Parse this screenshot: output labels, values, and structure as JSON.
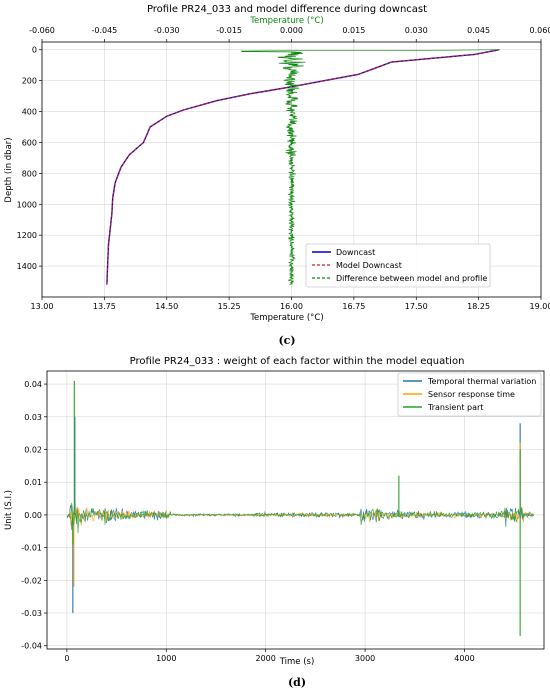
{
  "chart_data": [
    {
      "type": "line",
      "panel_label": "(c)",
      "title": "Profile PR24_033 and model difference during downcast",
      "xlabel_bottom": "Temperature (°C)",
      "xlabel_top": "Temperature (°C)",
      "ylabel": "Depth (in dbar)",
      "x_bottom_range": [
        13.0,
        19.0
      ],
      "x_bottom_ticks": [
        "13.00",
        "13.75",
        "14.50",
        "15.25",
        "16.00",
        "16.75",
        "17.50",
        "18.25",
        "19.00"
      ],
      "x_top_range": [
        -0.06,
        0.06
      ],
      "x_top_ticks": [
        "-0.060",
        "-0.045",
        "-0.030",
        "-0.015",
        "0.000",
        "0.015",
        "0.030",
        "0.045",
        "0.060"
      ],
      "y_range": [
        1600,
        -50
      ],
      "y_inverted": true,
      "y_ticks": [
        "0",
        "200",
        "400",
        "600",
        "800",
        "1000",
        "1200",
        "1400"
      ],
      "grid": true,
      "legend_position": "bottom-right",
      "colors": {
        "downcast": "#0000cc",
        "model": "#cc2222",
        "diff": "#118811",
        "top_axis": "#118811"
      },
      "series": [
        {
          "name": "Downcast",
          "axis": "bottom",
          "x": [
            18.5,
            18.2,
            17.2,
            17.0,
            16.8,
            16.4,
            16.0,
            15.5,
            15.1,
            14.7,
            14.5,
            14.3,
            14.22,
            14.05,
            13.95,
            13.88,
            13.85,
            13.84,
            13.82,
            13.8,
            13.79,
            13.78
          ],
          "y": [
            0,
            30,
            80,
            120,
            160,
            200,
            240,
            285,
            330,
            390,
            430,
            500,
            600,
            680,
            760,
            860,
            960,
            1060,
            1160,
            1260,
            1380,
            1520
          ]
        },
        {
          "name": "Model Downcast",
          "axis": "bottom",
          "x": [
            18.5,
            18.2,
            17.2,
            17.0,
            16.8,
            16.4,
            16.0,
            15.5,
            15.1,
            14.7,
            14.5,
            14.3,
            14.22,
            14.05,
            13.95,
            13.88,
            13.85,
            13.84,
            13.82,
            13.8,
            13.79,
            13.78
          ],
          "y": [
            0,
            30,
            80,
            120,
            160,
            200,
            240,
            285,
            330,
            390,
            430,
            500,
            600,
            680,
            760,
            860,
            960,
            1060,
            1160,
            1260,
            1380,
            1520
          ]
        },
        {
          "name": "Difference between model and profile",
          "axis": "top",
          "x_range_near_surface": [
            -0.012,
            0.05
          ],
          "x_range_deep": [
            -0.002,
            0.002
          ],
          "y_range": [
            0,
            1520
          ]
        }
      ]
    },
    {
      "type": "line",
      "panel_label": "(d)",
      "title": "Profile PR24_033 : weight of each factor within the model equation",
      "xlabel": "Time (s)",
      "ylabel": "Unit (S.I.)",
      "xlim": [
        -200,
        4800
      ],
      "ylim": [
        -0.041,
        0.044
      ],
      "x_ticks": [
        "0",
        "1000",
        "2000",
        "3000",
        "4000"
      ],
      "y_ticks": [
        "0.04",
        "0.03",
        "0.02",
        "0.01",
        "0.00",
        "-0.01",
        "-0.02",
        "-0.03",
        "-0.04"
      ],
      "grid": true,
      "legend_position": "top-right",
      "colors": {
        "thermal": "#1f77b4",
        "sensor": "#ff9f0e",
        "transient": "#2ca02c"
      },
      "series": [
        {
          "name": "Temporal thermal variation",
          "x_extent": [
            0,
            4700
          ],
          "spikes": [
            [
              60,
              -0.03
            ],
            [
              4560,
              0.028
            ],
            [
              80,
              0.03
            ]
          ]
        },
        {
          "name": "Sensor response time",
          "x_extent": [
            0,
            4700
          ],
          "spikes": [
            [
              70,
              -0.022
            ],
            [
              4560,
              0.022
            ]
          ]
        },
        {
          "name": "Transient part",
          "x_extent": [
            0,
            4700
          ],
          "spikes": [
            [
              75,
              0.041
            ],
            [
              60,
              -0.009
            ],
            [
              4560,
              -0.037
            ],
            [
              4560,
              0.02
            ],
            [
              3340,
              0.012
            ]
          ]
        }
      ]
    }
  ]
}
